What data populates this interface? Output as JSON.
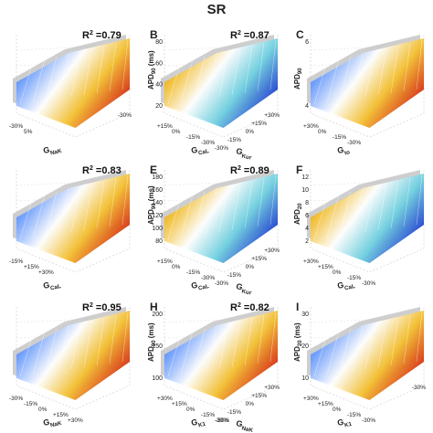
{
  "title": "SR",
  "chart_data": [
    {
      "type": "surface",
      "panel": "",
      "r2_label": "R",
      "r2_value": "=0.79",
      "z_ticks": [],
      "xaxis": {
        "label": "G",
        "sub": "NaK",
        "ticks": [
          "-30%",
          "5%"
        ]
      },
      "yaxis": {
        "label": "",
        "sub": "",
        "ticks": [
          "-30%"
        ]
      },
      "grad": [
        "#1f3fcf",
        "#6fa0ff",
        "#ffffff",
        "#f4c030",
        "#d62d10"
      ],
      "cloud": "#bdbdbd"
    },
    {
      "type": "surface",
      "panel": "B",
      "r2_label": "R",
      "r2_value": "=0.87",
      "zlabel": "APD",
      "zsub": "90",
      "zunit": "(ms)",
      "z_ticks": [
        "80",
        "60",
        "40",
        "20"
      ],
      "xaxis": {
        "label": "G",
        "sub": "CaL",
        "ticks": [
          "+15%",
          "0%",
          "-15%",
          "-30%"
        ]
      },
      "yaxis": {
        "label": "G",
        "sub": "Kur",
        "ticks": [
          "+30%",
          "+15%",
          "0%",
          "-15%",
          "-30%"
        ]
      },
      "grad": [
        "#d62d10",
        "#f4c030",
        "#ffffff",
        "#6fd0e0",
        "#1f3fcf"
      ],
      "cloud": "#bdbdbd"
    },
    {
      "type": "surface",
      "panel": "C",
      "r2_label": "",
      "r2_value": "",
      "zlabel": "APD",
      "zsub": "90",
      "zunit": "",
      "z_ticks": [
        "6",
        "4"
      ],
      "xaxis": {
        "label": "G",
        "sub": "to",
        "ticks": [
          "+30%",
          "0%",
          "-15%",
          "-30%"
        ]
      },
      "yaxis": {
        "label": "",
        "sub": "",
        "ticks": []
      },
      "grad": [
        "#1f3fcf",
        "#6fa0ff",
        "#ffffff",
        "#f4c030",
        "#d62d10"
      ],
      "cloud": "#bdbdbd"
    },
    {
      "type": "surface",
      "panel": "",
      "r2_label": "R",
      "r2_value": "=0.83",
      "z_ticks": [],
      "xaxis": {
        "label": "G",
        "sub": "CaL",
        "ticks": [
          "-15%",
          "+15%",
          "+30%"
        ]
      },
      "yaxis": {
        "label": "",
        "sub": "",
        "ticks": []
      },
      "grad": [
        "#1f3fcf",
        "#6fa0ff",
        "#ffffff",
        "#f4c030",
        "#d62d10"
      ],
      "cloud": "#bdbdbd"
    },
    {
      "type": "surface",
      "panel": "E",
      "r2_label": "R",
      "r2_value": "=0.89",
      "zlabel": "APD",
      "zsub": "90",
      "zunit": "(ms)",
      "z_ticks": [
        "180",
        "160",
        "140",
        "120",
        "100",
        "80"
      ],
      "xaxis": {
        "label": "G",
        "sub": "CaL",
        "ticks": [
          "+15%",
          "0%",
          "-15%",
          "-30%"
        ]
      },
      "yaxis": {
        "label": "G",
        "sub": "Kur",
        "ticks": [
          "+30%",
          "+15%",
          "0%",
          "-15%",
          "-30%"
        ]
      },
      "grad": [
        "#d62d10",
        "#f4c030",
        "#ffffff",
        "#6fd0e0",
        "#1f3fcf"
      ],
      "cloud": "#bdbdbd"
    },
    {
      "type": "surface",
      "panel": "F",
      "r2_label": "",
      "r2_value": "",
      "zlabel": "APD",
      "zsub": "20",
      "zunit": "",
      "z_ticks": [
        "12",
        "10",
        "8",
        "6",
        "4",
        "2"
      ],
      "xaxis": {
        "label": "G",
        "sub": "CaL",
        "ticks": [
          "+30%",
          "+15%",
          "0%",
          "-15%",
          "-30%"
        ]
      },
      "yaxis": {
        "label": "",
        "sub": "",
        "ticks": []
      },
      "grad": [
        "#d62d10",
        "#f4c030",
        "#ffffff",
        "#6fd0e0",
        "#1f3fcf"
      ],
      "cloud": "#bdbdbd"
    },
    {
      "type": "surface",
      "panel": "",
      "r2_label": "R",
      "r2_value": "=0.95",
      "z_ticks": [],
      "xaxis": {
        "label": "G",
        "sub": "NaK",
        "ticks": [
          "-30%",
          "-15%",
          "0%",
          "+15%",
          "+30%"
        ]
      },
      "yaxis": {
        "label": "",
        "sub": "",
        "ticks": []
      },
      "grad": [
        "#1f3fcf",
        "#6fa0ff",
        "#ffffff",
        "#f4c030",
        "#d62d10"
      ],
      "cloud": "#bdbdbd"
    },
    {
      "type": "surface",
      "panel": "H",
      "r2_label": "R",
      "r2_value": "=0.82",
      "zlabel": "APD",
      "zsub": "90",
      "zunit": "(ms)",
      "z_ticks": [
        "200",
        "150",
        "100"
      ],
      "xaxis": {
        "label": "G",
        "sub": "K1",
        "ticks": [
          "+30%",
          "+15%",
          "0%",
          "-15%",
          "-30%"
        ]
      },
      "yaxis": {
        "label": "G",
        "sub": "NaK",
        "ticks": [
          "+30%",
          "+15%",
          "0%",
          "-15%",
          "-30%"
        ]
      },
      "grad": [
        "#1f3fcf",
        "#6fa0ff",
        "#ffffff",
        "#f4c030",
        "#d62d10"
      ],
      "cloud": "#bdbdbd"
    },
    {
      "type": "surface",
      "panel": "I",
      "r2_label": "",
      "r2_value": "",
      "zlabel": "APD",
      "zsub": "20",
      "zunit": "(ms)",
      "z_ticks": [
        "30",
        "20",
        "10"
      ],
      "xaxis": {
        "label": "G",
        "sub": "K1",
        "ticks": [
          "+30%",
          "+15%",
          "0%",
          "-15%",
          "-30%"
        ]
      },
      "yaxis": {
        "label": "",
        "sub": "",
        "ticks": [
          "-30%"
        ]
      },
      "grad": [
        "#1f3fcf",
        "#6fa0ff",
        "#ffffff",
        "#f4c030",
        "#d62d10"
      ],
      "cloud": "#bdbdbd"
    }
  ]
}
